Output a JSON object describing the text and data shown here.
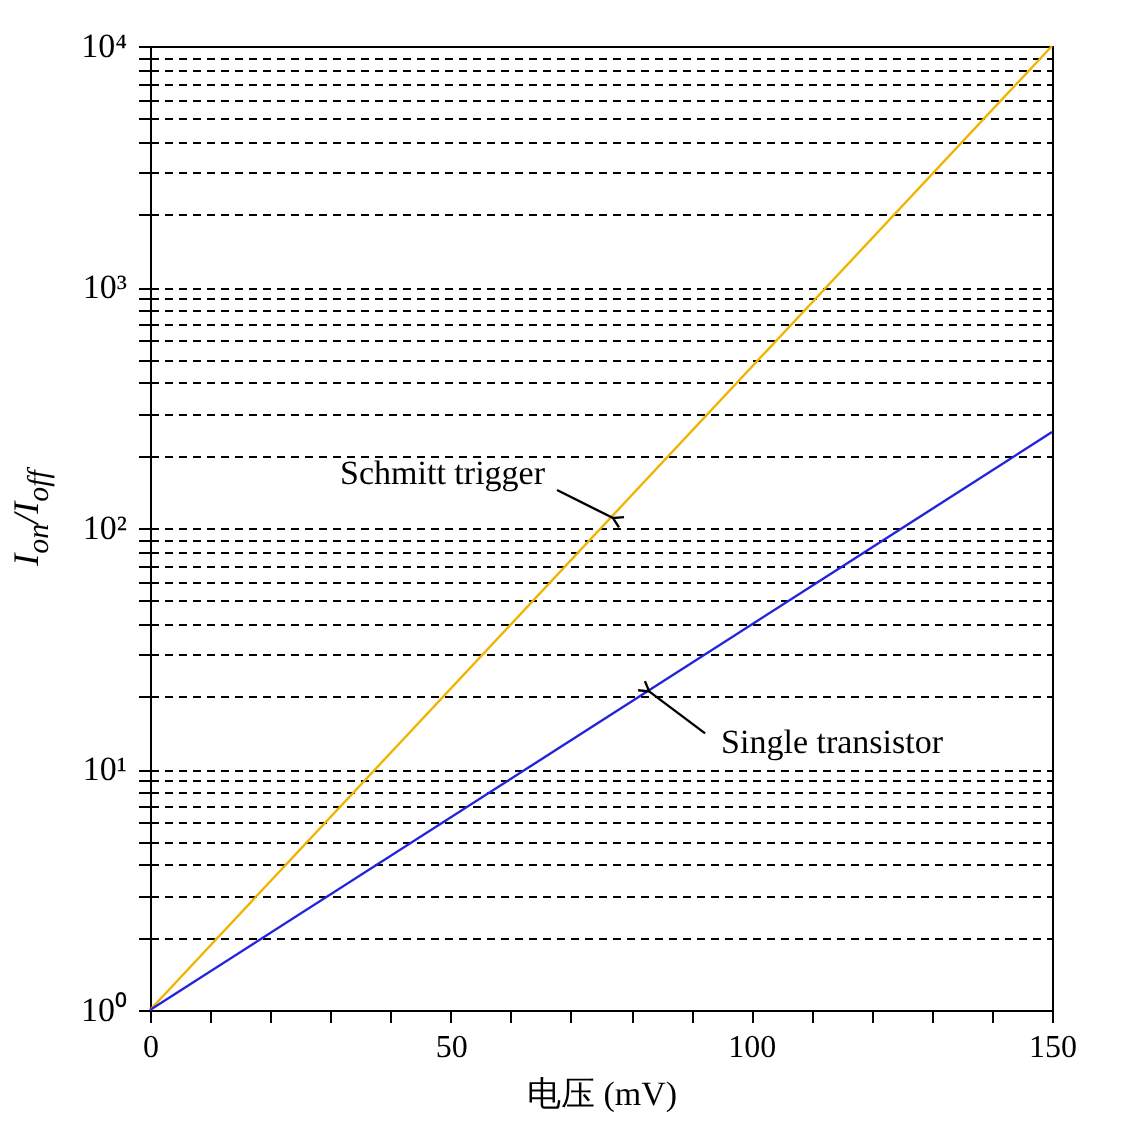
{
  "chart_data": {
    "type": "line",
    "xlabel": "电压 (mV)",
    "ylabel": "I$_{on}$/I$_{off}$",
    "x": [
      0,
      150
    ],
    "series": [
      {
        "color": "#f0b400",
        "values": [
          1,
          10000
        ]
      },
      {
        "color": "#2222dd",
        "values": [
          1,
          250
        ]
      }
    ],
    "annotations": [
      {
        "text": "Schmitt trigger",
        "x": 77,
        "y": 110
      },
      {
        "text": "Single transistor",
        "x": 83,
        "y": 21
      }
    ],
    "xlim": [
      0,
      150
    ],
    "xticks": [
      0,
      {
        "value": 10,
        "label": null
      },
      {
        "value": 20,
        "label": null
      },
      {
        "value": 30,
        "label": null
      },
      {
        "value": 40,
        "label": null
      },
      50,
      {
        "value": 60,
        "label": null
      },
      {
        "value": 70,
        "label": null
      },
      {
        "value": 80,
        "label": null
      },
      {
        "value": 90,
        "label": null
      },
      100,
      {
        "value": 110,
        "label": null
      },
      {
        "value": 120,
        "label": null
      },
      {
        "value": 130,
        "label": null
      },
      {
        "value": 140,
        "label": null
      },
      150
    ],
    "ylim": [
      1,
      10000
    ],
    "log": "y",
    "yticks": [
      {
        "value": 1,
        "label": "10⁰"
      },
      {
        "value": 2,
        "label": null
      },
      {
        "value": 3,
        "label": null
      },
      {
        "value": 4,
        "label": null
      },
      {
        "value": 5,
        "label": null
      },
      {
        "value": 6,
        "label": null
      },
      {
        "value": 7,
        "label": null
      },
      {
        "value": 8,
        "label": null
      },
      {
        "value": 9,
        "label": null
      },
      {
        "value": 10,
        "label": "10¹"
      },
      {
        "value": 20,
        "label": null
      },
      {
        "value": 30,
        "label": null
      },
      {
        "value": 40,
        "label": null
      },
      {
        "value": 50,
        "label": null
      },
      {
        "value": 60,
        "label": null
      },
      {
        "value": 70,
        "label": null
      },
      {
        "value": 80,
        "label": null
      },
      {
        "value": 90,
        "label": null
      },
      {
        "value": 100,
        "label": "10²"
      },
      {
        "value": 200,
        "label": null
      },
      {
        "value": 300,
        "label": null
      },
      {
        "value": 400,
        "label": null
      },
      {
        "value": 500,
        "label": null
      },
      {
        "value": 600,
        "label": null
      },
      {
        "value": 700,
        "label": null
      },
      {
        "value": 800,
        "label": null
      },
      {
        "value": 900,
        "label": null
      },
      {
        "value": 1000,
        "label": "10³"
      },
      {
        "value": 2000,
        "label": null
      },
      {
        "value": 3000,
        "label": null
      },
      {
        "value": 4000,
        "label": null
      },
      {
        "value": 5000,
        "label": null
      },
      {
        "value": 6000,
        "label": null
      },
      {
        "value": 7000,
        "label": null
      },
      {
        "value": 8000,
        "label": null
      },
      {
        "value": 9000,
        "label": null
      },
      {
        "value": 10000,
        "label": "10⁴"
      }
    ],
    "grid": "y",
    "legend": false,
    "marker": "none",
    "line_style": "solid"
  }
}
